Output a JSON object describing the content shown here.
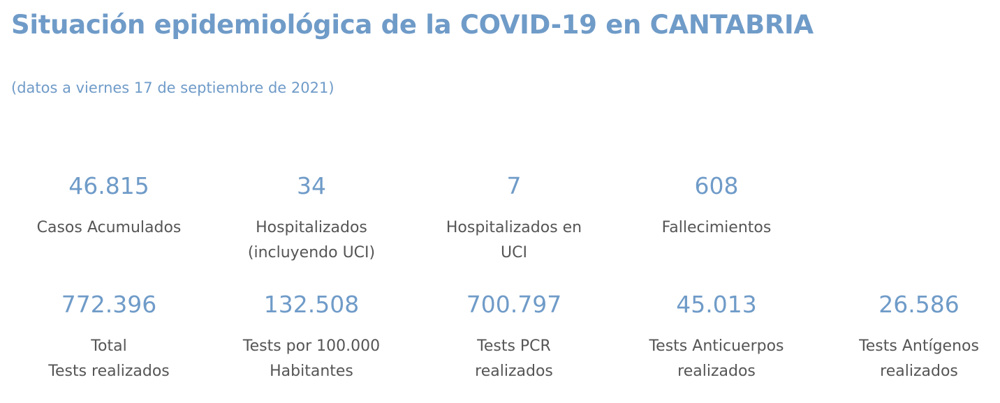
{
  "header": {
    "title": "Situación epidemiológica de la COVID-19 en CANTABRIA",
    "subtitle": "(datos a viernes 17 de septiembre de 2021)"
  },
  "stats_row1": [
    {
      "value": "46.815",
      "label_lines": [
        "Casos Acumulados"
      ]
    },
    {
      "value": "34",
      "label_lines": [
        "Hospitalizados",
        "(incluyendo UCI)"
      ]
    },
    {
      "value": "7",
      "label_lines": [
        "Hospitalizados en",
        "UCI"
      ]
    },
    {
      "value": "608",
      "label_lines": [
        "Fallecimientos"
      ]
    }
  ],
  "stats_row2": [
    {
      "value": "772.396",
      "label_lines": [
        "Total",
        "Tests realizados"
      ]
    },
    {
      "value": "132.508",
      "label_lines": [
        "Tests por 100.000",
        "Habitantes"
      ]
    },
    {
      "value": "700.797",
      "label_lines": [
        "Tests PCR",
        "realizados"
      ]
    },
    {
      "value": "45.013",
      "label_lines": [
        "Tests Anticuerpos",
        "realizados"
      ]
    },
    {
      "value": "26.586",
      "label_lines": [
        "Tests Antígenos",
        "realizados"
      ]
    }
  ]
}
